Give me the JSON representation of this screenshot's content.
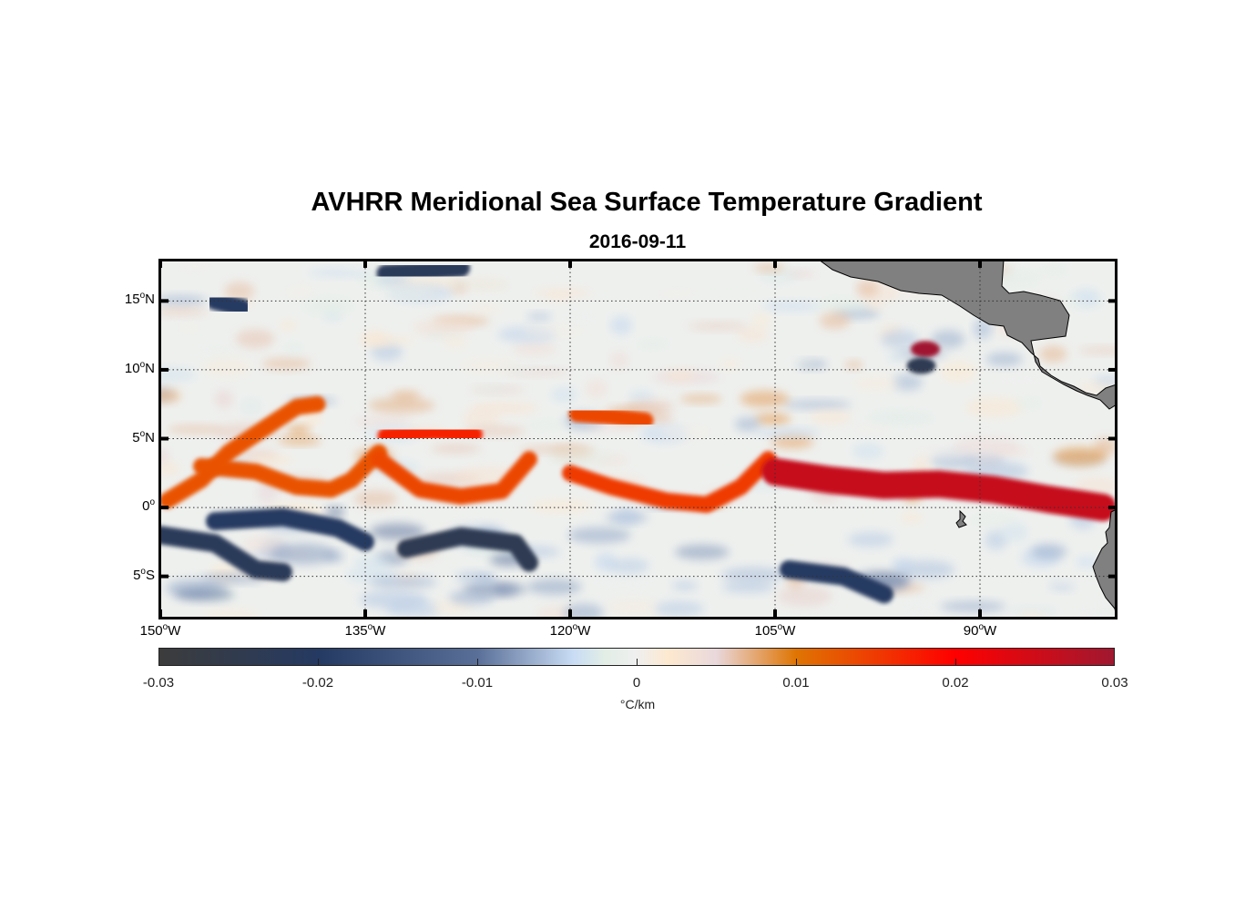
{
  "title": "AVHRR Meridional Sea Surface Temperature Gradient",
  "subtitle": "2016-09-11",
  "chart_data": {
    "type": "heatmap",
    "title": "AVHRR Meridional Sea Surface Temperature Gradient",
    "subtitle": "2016-09-11",
    "xlabel": "",
    "ylabel": "",
    "xlim": [
      -150,
      -80
    ],
    "ylim": [
      -8,
      18
    ],
    "x_ticks": [
      {
        "value": -150,
        "label": "150",
        "suffix": "W"
      },
      {
        "value": -135,
        "label": "135",
        "suffix": "W"
      },
      {
        "value": -120,
        "label": "120",
        "suffix": "W"
      },
      {
        "value": -105,
        "label": "105",
        "suffix": "W"
      },
      {
        "value": -90,
        "label": "90",
        "suffix": "W"
      }
    ],
    "y_ticks": [
      {
        "value": 15,
        "label": "15",
        "suffix": "N"
      },
      {
        "value": 10,
        "label": "10",
        "suffix": "N"
      },
      {
        "value": 5,
        "label": "5",
        "suffix": "N"
      },
      {
        "value": 0,
        "label": "0",
        "suffix": ""
      },
      {
        "value": -5,
        "label": "5",
        "suffix": "S"
      }
    ],
    "grid": true,
    "land_color": "#808080",
    "colorbar": {
      "position": "bottom",
      "range": [
        -0.03,
        0.03
      ],
      "ticks": [
        -0.03,
        -0.02,
        -0.01,
        0,
        0.01,
        0.02,
        0.03
      ],
      "tick_labels": [
        "-0.03",
        "-0.02",
        "-0.01",
        "0",
        "0.01",
        "0.02",
        "0.03"
      ],
      "label": "°C/km",
      "colors": [
        {
          "v": -0.03,
          "c": "#3c3c3c"
        },
        {
          "v": -0.02,
          "c": "#253a62"
        },
        {
          "v": -0.01,
          "c": "#5a6f98"
        },
        {
          "v": -0.004,
          "c": "#c8dcf4"
        },
        {
          "v": -0.002,
          "c": "#e2eee6"
        },
        {
          "v": 0,
          "c": "#efefef"
        },
        {
          "v": 0.002,
          "c": "#fde9cf"
        },
        {
          "v": 0.005,
          "c": "#e9d8dc"
        },
        {
          "v": 0.01,
          "c": "#df7503"
        },
        {
          "v": 0.02,
          "c": "#ff0000"
        },
        {
          "v": 0.03,
          "c": "#a01830"
        }
      ]
    },
    "features": [
      {
        "name": "north-equatorial-front-wave-1",
        "lon": [
          -149.5,
          -147,
          -145,
          -142,
          -140,
          -138.5
        ],
        "lat": [
          0.5,
          2,
          4,
          6,
          7.3,
          7.5
        ],
        "value": 0.013
      },
      {
        "name": "equatorial-front-arc-1",
        "lon": [
          -147,
          -143,
          -140,
          -137.5,
          -136,
          -134
        ],
        "lat": [
          3,
          2.6,
          1.5,
          1.3,
          2,
          4
        ],
        "value": 0.013
      },
      {
        "name": "equatorial-front-arc-2",
        "lon": [
          -134,
          -131,
          -128,
          -125,
          -123
        ],
        "lat": [
          3.5,
          1.3,
          0.8,
          1.2,
          3.5
        ],
        "value": 0.014
      },
      {
        "name": "equatorial-front-crest-2",
        "lon": [
          -133.5,
          -130,
          -127
        ],
        "lat": [
          5.2,
          5.5,
          5.3
        ],
        "value": 0.017
      },
      {
        "name": "equatorial-front-arc-3",
        "lon": [
          -120,
          -117,
          -113,
          -110,
          -107.5,
          -105.5
        ],
        "lat": [
          2.5,
          1.5,
          0.5,
          0.2,
          1.5,
          3.5
        ],
        "value": 0.015
      },
      {
        "name": "equatorial-front-crest-3",
        "lon": [
          -119.5,
          -117,
          -114.5
        ],
        "lat": [
          6.8,
          6.6,
          6.3
        ],
        "value": 0.014
      },
      {
        "name": "cold-tongue-front",
        "lon": [
          -105,
          -101,
          -97,
          -93,
          -89,
          -85,
          -81
        ],
        "lat": [
          2.6,
          2,
          1.6,
          1.7,
          1.3,
          0.6,
          0
        ],
        "value": 0.026
      },
      {
        "name": "costa-rica-dome-positive",
        "lon": [
          -94
        ],
        "lat": [
          11.5
        ],
        "value": 0.03
      },
      {
        "name": "costa-rica-dome-negative",
        "lon": [
          -94.3
        ],
        "lat": [
          10.3
        ],
        "value": -0.024
      }
    ],
    "negative_bands": [
      {
        "name": "south-equatorial-band-1",
        "lon": [
          -146,
          -141,
          -137,
          -135
        ],
        "lat": [
          -1,
          -0.7,
          -1.5,
          -2.5
        ],
        "value": -0.02
      },
      {
        "name": "south-equatorial-band-2",
        "lon": [
          -132,
          -128,
          -124,
          -123
        ],
        "lat": [
          -3,
          -2.1,
          -2.6,
          -4
        ],
        "value": -0.024
      },
      {
        "name": "south-band-west",
        "lon": [
          -150,
          -146,
          -143,
          -141
        ],
        "lat": [
          -2,
          -2.6,
          -4.5,
          -4.7
        ],
        "value": -0.022
      },
      {
        "name": "north-cold-patch",
        "lon": [
          -146,
          -144
        ],
        "lat": [
          15,
          14.5
        ],
        "value": -0.02
      },
      {
        "name": "north-cold-patch-2",
        "lon": [
          -133.5,
          -130.5,
          -128
        ],
        "lat": [
          17,
          17.2,
          17.4
        ],
        "value": -0.022
      },
      {
        "name": "south-band-east",
        "lon": [
          -104,
          -100,
          -97
        ],
        "lat": [
          -4.5,
          -5,
          -6.3
        ],
        "value": -0.02
      }
    ]
  }
}
